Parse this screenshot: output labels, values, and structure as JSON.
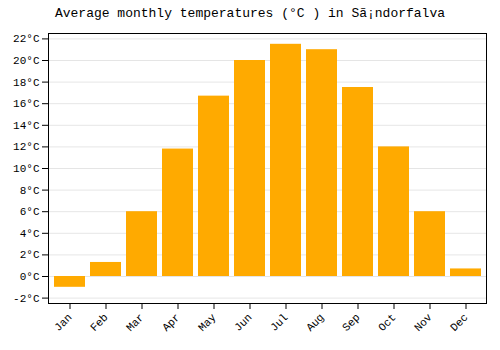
{
  "chart_data": {
    "type": "bar",
    "title": "Average monthly temperatures (°C ) in Sã¡ndorfalva",
    "categories": [
      "Jan",
      "Feb",
      "Mar",
      "Apr",
      "May",
      "Jun",
      "Jul",
      "Aug",
      "Sep",
      "Oct",
      "Nov",
      "Dec"
    ],
    "values": [
      -1.0,
      1.3,
      6.0,
      11.8,
      16.7,
      20.0,
      21.5,
      21.0,
      17.5,
      12.0,
      6.0,
      0.7
    ],
    "color": "#FFAA00",
    "ylim": [
      -2.5,
      22.5
    ],
    "yticks": [
      {
        "value": -2,
        "label": "-2°C"
      },
      {
        "value": 0,
        "label": "0°C"
      },
      {
        "value": 2,
        "label": "2°C"
      },
      {
        "value": 4,
        "label": "4°C"
      },
      {
        "value": 6,
        "label": "6°C"
      },
      {
        "value": 8,
        "label": "8°C"
      },
      {
        "value": 10,
        "label": "10°C"
      },
      {
        "value": 12,
        "label": "12°C"
      },
      {
        "value": 14,
        "label": "14°C"
      },
      {
        "value": 16,
        "label": "16°C"
      },
      {
        "value": 18,
        "label": "18°C"
      },
      {
        "value": 20,
        "label": "20°C"
      },
      {
        "value": 22,
        "label": "22°C"
      }
    ],
    "grid": true
  }
}
